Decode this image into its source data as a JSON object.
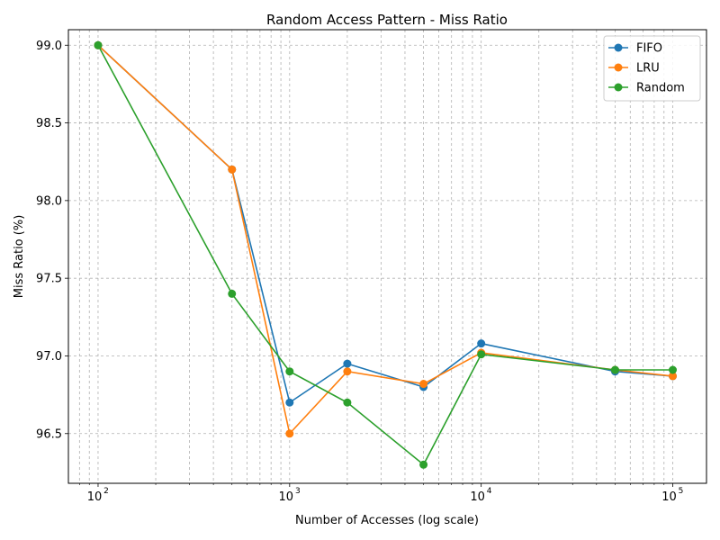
{
  "chart_data": {
    "type": "line",
    "title": "Random Access Pattern - Miss Ratio",
    "xlabel": "Number of Accesses (log scale)",
    "ylabel": "Miss Ratio (%)",
    "xscale": "log",
    "xlim": [
      70,
      150000
    ],
    "ylim": [
      96.18,
      99.1
    ],
    "x": [
      100,
      500,
      1000,
      2000,
      5000,
      10000,
      50000,
      100000
    ],
    "x_tick_values": [
      100,
      1000,
      10000,
      100000
    ],
    "x_tick_labels": [
      {
        "base": "10",
        "exp": "2"
      },
      {
        "base": "10",
        "exp": "3"
      },
      {
        "base": "10",
        "exp": "4"
      },
      {
        "base": "10",
        "exp": "5"
      }
    ],
    "y_ticks": [
      "96.5",
      "97.0",
      "97.5",
      "98.0",
      "98.5",
      "99.0"
    ],
    "grid": true,
    "grid_which": "major and minor",
    "legend_position": "top-right",
    "series": [
      {
        "name": "FIFO",
        "color": "#1f77b4",
        "values": [
          99.0,
          98.2,
          96.7,
          96.95,
          96.8,
          97.08,
          96.9,
          96.87
        ]
      },
      {
        "name": "LRU",
        "color": "#ff7f0e",
        "values": [
          99.0,
          98.2,
          96.5,
          96.9,
          96.82,
          97.02,
          96.91,
          96.87
        ]
      },
      {
        "name": "Random",
        "color": "#2ca02c",
        "values": [
          99.0,
          97.4,
          96.9,
          96.7,
          96.3,
          97.01,
          96.91,
          96.91
        ]
      }
    ]
  }
}
